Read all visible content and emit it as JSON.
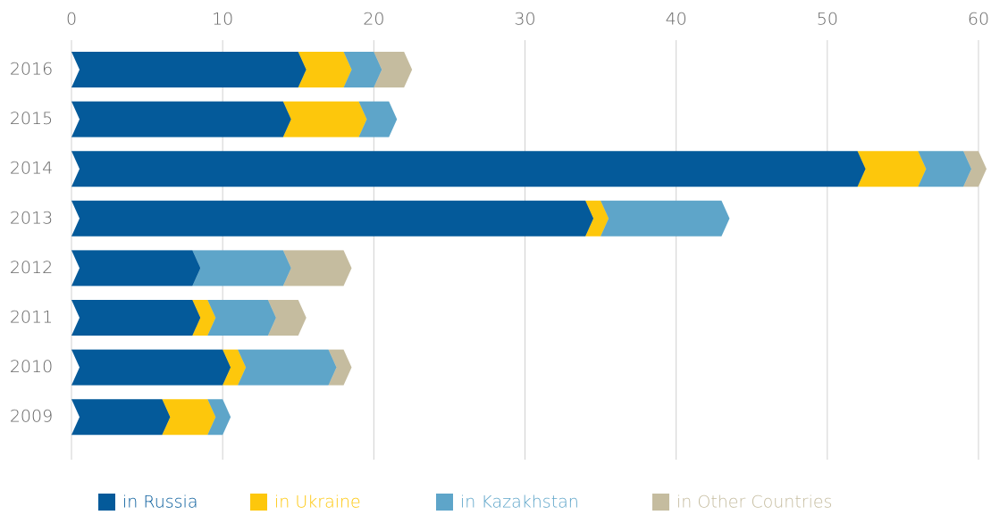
{
  "chart_data": {
    "type": "stacked-bar-horizontal",
    "categories": [
      "2016",
      "2015",
      "2014",
      "2013",
      "2012",
      "2011",
      "2010",
      "2009"
    ],
    "series": [
      {
        "name": "in Russia",
        "color": "#045a9a",
        "values": [
          15,
          14,
          52,
          34,
          8,
          8,
          10,
          6
        ]
      },
      {
        "name": "in Ukraine",
        "color": "#fdc70c",
        "values": [
          3,
          5,
          4,
          1,
          0,
          1,
          1,
          3
        ]
      },
      {
        "name": "in Kazakhstan",
        "color": "#5ea5c9",
        "values": [
          2,
          2,
          3,
          8,
          6,
          4,
          6,
          1
        ]
      },
      {
        "name": "in Other Countries",
        "color": "#c5bc9f",
        "values": [
          2,
          0,
          1,
          0,
          4,
          2,
          1,
          0
        ]
      }
    ],
    "xlim": [
      0,
      60
    ],
    "xticks": [
      0,
      10,
      20,
      30,
      40,
      50,
      60
    ],
    "grid": true
  }
}
